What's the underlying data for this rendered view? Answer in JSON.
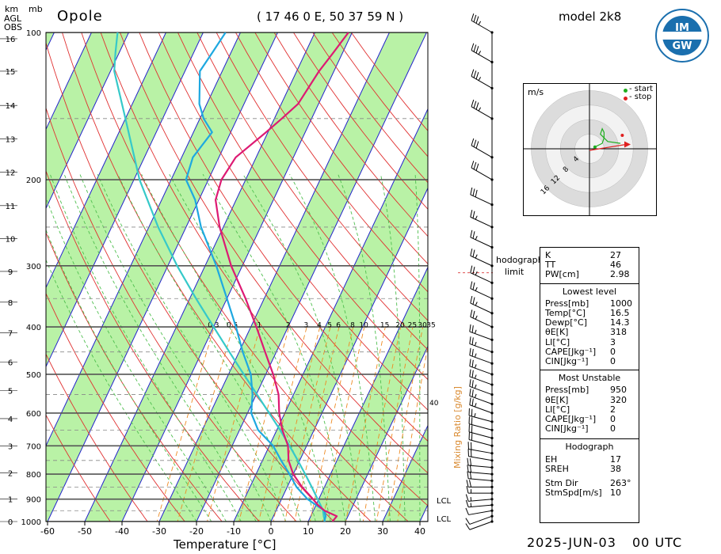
{
  "header": {
    "station": "Opole",
    "coords": "( 17 46  0 E,  50 37 59 N )",
    "model": "model 2k8",
    "logo_text": "IMGW",
    "date": "2025-JUN-03",
    "time": "00 UTC"
  },
  "axes": {
    "unit_km": "km",
    "unit_agl": "AGL",
    "unit_obs": "OBS",
    "unit_mb": "mb",
    "xlabel": "Temperature [°C]",
    "mixing_ratio_label": "Mixing Ratio [g/kg]"
  },
  "chart_data": {
    "type": "skew-t",
    "x_ticks": [
      -60,
      -50,
      -40,
      -30,
      -20,
      -10,
      0,
      10,
      20,
      30,
      40
    ],
    "pressure_ticks": [
      100,
      200,
      300,
      400,
      500,
      600,
      700,
      800,
      900,
      1000
    ],
    "km_ticks": [
      0,
      1,
      2,
      3,
      4,
      5,
      6,
      7,
      8,
      9,
      10,
      11,
      12,
      13,
      14,
      15,
      16
    ],
    "mixing_ratio_labels": [
      "0.3",
      "0.5",
      "1",
      "2",
      "3",
      "4",
      "5",
      "6",
      "8",
      "10",
      "15",
      "20",
      "25",
      "30",
      "35"
    ],
    "mixing_ratio_values": [
      0.3,
      0.5,
      1,
      2,
      3,
      4,
      5,
      6,
      8,
      10,
      15,
      20,
      25,
      30,
      35
    ],
    "side_labels": {
      "lcl_upper": "LCL",
      "lcl_lower": "LCL",
      "forty": "40"
    },
    "temperature": {
      "name": "temperature",
      "p": [
        1000,
        975,
        950,
        925,
        900,
        850,
        800,
        750,
        700,
        650,
        600,
        550,
        500,
        450,
        400,
        350,
        300,
        250,
        220,
        200,
        180,
        160,
        150,
        140,
        120,
        110,
        100
      ],
      "t": [
        16.5,
        17,
        13,
        10.5,
        8.5,
        4,
        0,
        -3,
        -5,
        -8.5,
        -11.5,
        -14,
        -18,
        -23,
        -28.5,
        -35,
        -43,
        -51,
        -55.5,
        -56.5,
        -55.5,
        -50.5,
        -48,
        -45.5,
        -44,
        -42.5,
        -41
      ]
    },
    "dewpoint": {
      "name": "dewpoint",
      "p": [
        1000,
        975,
        950,
        925,
        900,
        850,
        800,
        750,
        700,
        650,
        600,
        550,
        500,
        450,
        400,
        350,
        300,
        250,
        220,
        200,
        180,
        160,
        150,
        140,
        120,
        110,
        100
      ],
      "t": [
        14.3,
        14,
        13,
        10,
        7,
        2.5,
        -1,
        -5,
        -9,
        -15,
        -19,
        -21,
        -24,
        -29,
        -34,
        -40,
        -47,
        -56,
        -61,
        -66,
        -67,
        -65,
        -69,
        -72,
        -76,
        -75,
        -74
      ]
    },
    "parcel": {
      "name": "parcel",
      "p": [
        1000,
        975,
        950,
        925,
        900,
        850,
        800,
        750,
        700,
        650,
        600,
        550,
        500,
        450,
        400,
        350,
        300,
        250,
        200,
        150,
        120,
        110,
        100
      ],
      "t": [
        14.5,
        13.5,
        12.6,
        11.2,
        9.7,
        6.6,
        3.2,
        -0.5,
        -4.6,
        -9.1,
        -14.2,
        -19.8,
        -25.9,
        -32.6,
        -40,
        -48.3,
        -57.5,
        -67.5,
        -78.5,
        -90,
        -99,
        -101,
        -103
      ]
    },
    "wind": {
      "p": [
        1000,
        975,
        950,
        925,
        900,
        875,
        850,
        825,
        800,
        775,
        750,
        725,
        700,
        675,
        650,
        625,
        600,
        575,
        550,
        525,
        500,
        475,
        450,
        425,
        400,
        375,
        350,
        325,
        300,
        275,
        250,
        225,
        200,
        180,
        150,
        130,
        115,
        100
      ],
      "speed_ms": [
        5,
        5,
        5,
        7.5,
        7.5,
        7.5,
        10,
        10,
        10,
        10,
        10,
        10,
        10,
        10,
        10,
        12.5,
        12.5,
        12.5,
        12.5,
        12.5,
        12.5,
        12.5,
        12.5,
        12.5,
        12.5,
        12.5,
        12.5,
        12.5,
        12.5,
        12.5,
        12.5,
        15,
        15,
        15,
        17.5,
        17.5,
        17.5,
        17.5
      ],
      "dir_deg": [
        250,
        250,
        260,
        265,
        265,
        270,
        270,
        275,
        275,
        275,
        280,
        280,
        285,
        285,
        285,
        285,
        290,
        290,
        290,
        290,
        290,
        290,
        290,
        290,
        295,
        295,
        295,
        295,
        295,
        295,
        295,
        295,
        300,
        300,
        300,
        300,
        300,
        300
      ]
    },
    "hodograph_limit_p": 310
  },
  "hodograph": {
    "unit": "m/s",
    "legend_start": "- start",
    "legend_stop": "- stop",
    "ring_labels": [
      "4",
      "8",
      "12",
      "16"
    ],
    "ring_values": [
      4,
      8,
      12,
      16
    ],
    "start_color": "#1fae1f",
    "stop_color": "#e02020",
    "trace_u": [
      1.5,
      3.5,
      4,
      4,
      3.5,
      3,
      5,
      8.5,
      8.5
    ],
    "trace_v": [
      0.5,
      1.5,
      3,
      4.5,
      5.5,
      4,
      2,
      1.5,
      1.5
    ],
    "stop_marker": [
      9,
      3.7
    ],
    "storm_vector": [
      10,
      1.2
    ],
    "limit_label_1": "hodograph",
    "limit_label_2": "limit"
  },
  "indices": {
    "top": [
      {
        "k": "K",
        "v": "27"
      },
      {
        "k": "TT",
        "v": "46"
      },
      {
        "k": "PW[cm]",
        "v": "2.98"
      }
    ],
    "lowest_title": "Lowest level",
    "lowest": [
      {
        "k": "Press[mb]",
        "v": "1000"
      },
      {
        "k": "Temp[°C]",
        "v": "16.5"
      },
      {
        "k": "Dewp[°C]",
        "v": "14.3"
      },
      {
        "k": "θE[K]",
        "v": "318"
      },
      {
        "k": "LI[°C]",
        "v": "3"
      },
      {
        "k": "CAPE[Jkg⁻¹]",
        "v": "0"
      },
      {
        "k": "CIN[Jkg⁻¹]",
        "v": "0"
      }
    ],
    "unstable_title": "Most Unstable",
    "unstable": [
      {
        "k": "Press[mb]",
        "v": "950"
      },
      {
        "k": "θE[K]",
        "v": "320"
      },
      {
        "k": "LI[°C]",
        "v": "2"
      },
      {
        "k": "CAPE[Jkg⁻¹]",
        "v": "0"
      },
      {
        "k": "CIN[Jkg⁻¹]",
        "v": "0"
      }
    ],
    "hodo_title": "Hodograph",
    "hodo": [
      {
        "k": "EH",
        "v": "17"
      },
      {
        "k": "SREH",
        "v": "38"
      }
    ],
    "storm": [
      {
        "k": "Stm Dir",
        "v": "263°"
      },
      {
        "k": "StmSpd[m/s]",
        "v": "10"
      }
    ]
  },
  "colors": {
    "temperature": "#dd1a73",
    "dewpoint": "#1ea8e0",
    "parcel": "#36c9c9",
    "isotherm": "#2222cc",
    "green_band": "#b9f2a6",
    "dry_adiabat": "#e03030",
    "moist_adiabat": "#4fbf4f",
    "mixing_ratio": "#ee8a22"
  }
}
